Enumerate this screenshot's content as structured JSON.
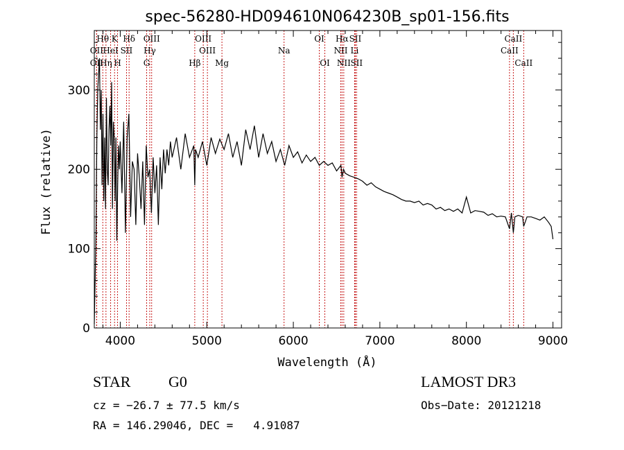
{
  "chart_data": {
    "type": "line",
    "title": "spec-56280-HD094610N064230B_sp01-156.fits",
    "xlabel": "Wavelength (Å)",
    "ylabel": "Flux (relative)",
    "xlim": [
      3700,
      9100
    ],
    "ylim": [
      0,
      375
    ],
    "xticks": [
      4000,
      5000,
      6000,
      7000,
      8000,
      9000
    ],
    "yticks": [
      0,
      100,
      200,
      300
    ],
    "grid": false,
    "series": [
      {
        "name": "flux",
        "x": [
          3700,
          3710,
          3720,
          3730,
          3740,
          3750,
          3760,
          3770,
          3780,
          3790,
          3800,
          3810,
          3820,
          3830,
          3840,
          3850,
          3860,
          3870,
          3880,
          3890,
          3900,
          3910,
          3920,
          3930,
          3940,
          3950,
          3960,
          3970,
          3980,
          3990,
          4000,
          4020,
          4040,
          4060,
          4080,
          4100,
          4120,
          4140,
          4160,
          4180,
          4200,
          4220,
          4240,
          4260,
          4280,
          4300,
          4320,
          4340,
          4360,
          4380,
          4400,
          4420,
          4440,
          4460,
          4480,
          4500,
          4520,
          4540,
          4560,
          4580,
          4600,
          4650,
          4700,
          4750,
          4800,
          4850,
          4861,
          4870,
          4900,
          4950,
          5000,
          5050,
          5100,
          5150,
          5200,
          5250,
          5300,
          5350,
          5400,
          5450,
          5500,
          5550,
          5600,
          5650,
          5700,
          5750,
          5800,
          5850,
          5900,
          5950,
          6000,
          6050,
          6100,
          6150,
          6200,
          6250,
          6300,
          6350,
          6400,
          6450,
          6500,
          6550,
          6563,
          6580,
          6600,
          6650,
          6700,
          6750,
          6800,
          6850,
          6900,
          6950,
          7000,
          7050,
          7100,
          7150,
          7200,
          7250,
          7300,
          7350,
          7400,
          7450,
          7500,
          7550,
          7600,
          7650,
          7700,
          7750,
          7800,
          7850,
          7900,
          7950,
          8000,
          8050,
          8100,
          8150,
          8200,
          8250,
          8300,
          8350,
          8400,
          8450,
          8498,
          8520,
          8542,
          8560,
          8600,
          8650,
          8662,
          8700,
          8750,
          8800,
          8850,
          8900,
          8950,
          8980,
          9000
        ],
        "values": [
          5,
          60,
          120,
          240,
          300,
          320,
          340,
          250,
          300,
          180,
          270,
          160,
          240,
          150,
          290,
          200,
          180,
          250,
          280,
          230,
          310,
          150,
          260,
          240,
          160,
          240,
          110,
          180,
          230,
          200,
          235,
          170,
          260,
          120,
          240,
          270,
          140,
          210,
          200,
          130,
          220,
          190,
          150,
          210,
          130,
          230,
          190,
          200,
          145,
          215,
          170,
          205,
          130,
          215,
          175,
          225,
          195,
          225,
          205,
          235,
          215,
          240,
          200,
          245,
          215,
          230,
          180,
          225,
          215,
          235,
          205,
          240,
          220,
          238,
          225,
          245,
          215,
          235,
          205,
          250,
          225,
          255,
          215,
          245,
          220,
          235,
          210,
          225,
          205,
          230,
          215,
          222,
          208,
          218,
          210,
          215,
          205,
          210,
          205,
          208,
          198,
          205,
          190,
          200,
          195,
          192,
          190,
          188,
          185,
          180,
          183,
          178,
          175,
          172,
          170,
          168,
          165,
          162,
          160,
          160,
          158,
          160,
          155,
          157,
          155,
          150,
          152,
          148,
          150,
          147,
          150,
          145,
          165,
          145,
          148,
          147,
          146,
          142,
          144,
          140,
          141,
          140,
          125,
          145,
          120,
          140,
          142,
          140,
          128,
          140,
          140,
          138,
          136,
          140,
          133,
          128,
          112
        ]
      }
    ],
    "lines": [
      {
        "label": "Hθ",
        "x": 3798,
        "row": 1
      },
      {
        "label": "OII",
        "x": 3727,
        "row": 2
      },
      {
        "label": "OII",
        "x": 3727,
        "row": 3
      },
      {
        "label": "Hη",
        "x": 3835,
        "row": 3
      },
      {
        "label": "HeI",
        "x": 3889,
        "row": 2
      },
      {
        "label": "K",
        "x": 3934,
        "row": 1
      },
      {
        "label": "SII",
        "x": 4072,
        "row": 2
      },
      {
        "label": "H",
        "x": 3969,
        "row": 3
      },
      {
        "label": "Hδ",
        "x": 4102,
        "row": 1
      },
      {
        "label": "OIII",
        "x": 4363,
        "row": 1
      },
      {
        "label": "Hγ",
        "x": 4341,
        "row": 2
      },
      {
        "label": "G",
        "x": 4305,
        "row": 3
      },
      {
        "label": "Hβ",
        "x": 4861,
        "row": 3
      },
      {
        "label": "OIII",
        "x": 4959,
        "row": 1
      },
      {
        "label": "OIII",
        "x": 5007,
        "row": 2
      },
      {
        "label": "Mg",
        "x": 5175,
        "row": 3
      },
      {
        "label": "Na",
        "x": 5893,
        "row": 2
      },
      {
        "label": "OI",
        "x": 6300,
        "row": 1
      },
      {
        "label": "OI",
        "x": 6364,
        "row": 3
      },
      {
        "label": "Hα",
        "x": 6563,
        "row": 1
      },
      {
        "label": "SII",
        "x": 6716,
        "row": 1
      },
      {
        "label": "NII",
        "x": 6548,
        "row": 2
      },
      {
        "label": "Li",
        "x": 6708,
        "row": 2
      },
      {
        "label": "NII",
        "x": 6583,
        "row": 3
      },
      {
        "label": "SII",
        "x": 6731,
        "row": 3
      },
      {
        "label": "CaII",
        "x": 8542,
        "row": 1
      },
      {
        "label": "CaII",
        "x": 8498,
        "row": 2
      },
      {
        "label": "CaII",
        "x": 8662,
        "row": 3
      }
    ]
  },
  "info": {
    "class": "STAR",
    "subclass": "G0",
    "survey": "LAMOST DR3",
    "cz": "cz = −26.7 ± 77.5 km/s",
    "obs_date": "Obs−Date: 20121218",
    "coords": "RA = 146.29046, DEC =   4.91087"
  },
  "colors": {
    "axis": "#000000",
    "spectrum": "#000000",
    "line_marker": "#c00000"
  }
}
